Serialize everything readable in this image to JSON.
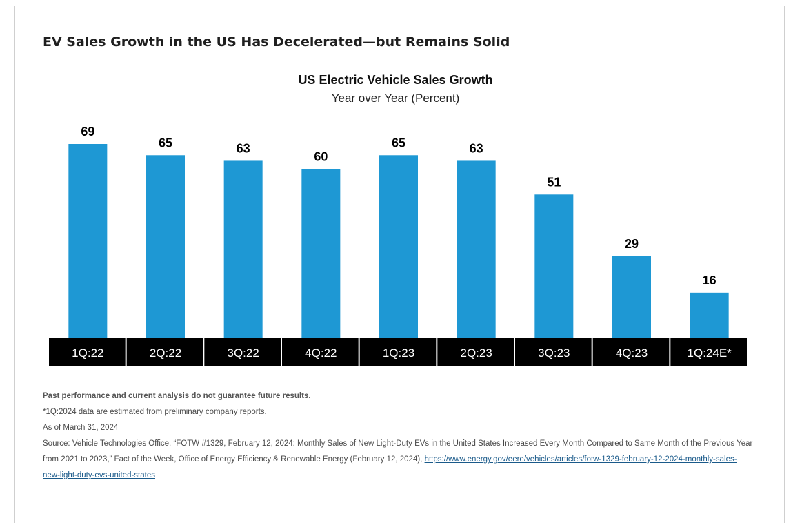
{
  "heading": "EV Sales Growth in the US Has Decelerated—but Remains Solid",
  "chart_data": {
    "type": "bar",
    "title": "US Electric Vehicle Sales Growth",
    "subtitle": "Year over Year (Percent)",
    "categories": [
      "1Q:22",
      "2Q:22",
      "3Q:22",
      "4Q:22",
      "1Q:23",
      "2Q:23",
      "3Q:23",
      "4Q:23",
      "1Q:24E*"
    ],
    "values": [
      69,
      65,
      63,
      60,
      65,
      63,
      51,
      29,
      16
    ],
    "data_labels": [
      "69",
      "65",
      "63",
      "60",
      "65",
      "63",
      "51",
      "29",
      "16"
    ],
    "ylim": [
      0,
      69
    ],
    "grid": false,
    "legend": "none",
    "bar_color": "#1e98d4",
    "axis_band_color": "#000000",
    "axis_label_color": "#ffffff"
  },
  "notes": {
    "disclaimer": "Past performance and current analysis do not guarantee future results.",
    "footnote": "*1Q:2024 data are estimated from preliminary company reports.",
    "as_of": "As of March 31, 2024",
    "source_text": "Source: Vehicle Technologies Office, “FOTW #1329, February 12, 2024: Monthly Sales of New Light-Duty EVs in the United States Increased Every Month Compared to Same Month of the Previous Year from 2021 to 2023,” Fact of the Week, Office of Energy Efficiency & Renewable Energy (February 12, 2024), ",
    "source_link": "https://www.energy.gov/eere/vehicles/articles/fotw-1329-february-12-2024-monthly-sales-new-light-duty-evs-united-states"
  }
}
